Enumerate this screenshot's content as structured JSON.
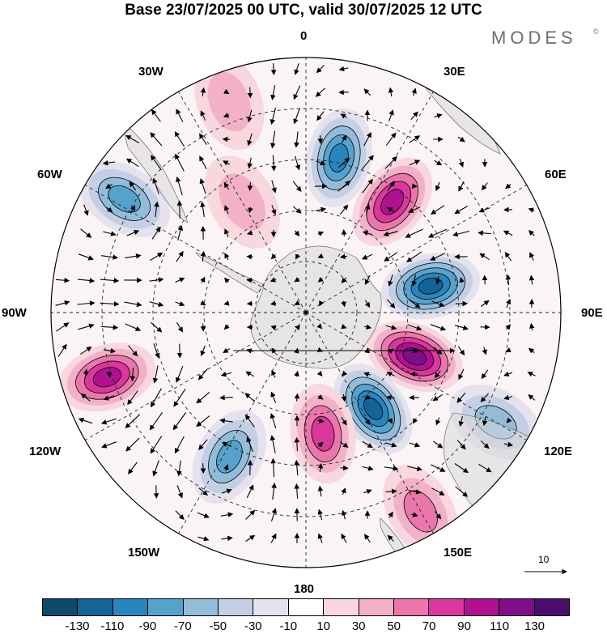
{
  "header": {
    "title": "Base 23/07/2025 00 UTC, valid 30/07/2025 12 UTC",
    "brand": "MODES",
    "brand_mark": "©"
  },
  "map": {
    "projection": "south polar stereographic",
    "longitude_labels": {
      "top": "0",
      "ne30": "30E",
      "ne60": "60E",
      "east": "90E",
      "se120": "120E",
      "se150": "150E",
      "bottom": "180",
      "sw150": "150W",
      "sw120": "120W",
      "west": "90W",
      "nw60": "60W",
      "nw30": "30W"
    },
    "reference_vector_label": "10",
    "anomaly_cells": [
      {
        "lon": 12,
        "r": 0.62,
        "value": -100,
        "name": "negative anomaly 0-30E"
      },
      {
        "lon": 38,
        "r": 0.55,
        "value": 115,
        "name": "positive anomaly 30-60E"
      },
      {
        "lon": 78,
        "r": 0.5,
        "value": -125,
        "name": "negative anomaly 60-90E"
      },
      {
        "lon": 112,
        "r": 0.46,
        "value": 125,
        "name": "positive anomaly 90-120E"
      },
      {
        "lon": 145,
        "r": 0.46,
        "value": -120,
        "name": "negative anomaly 150E"
      },
      {
        "lon": 172,
        "r": 0.48,
        "value": 95,
        "name": "positive anomaly 170E"
      },
      {
        "lon": -152,
        "r": 0.64,
        "value": -95,
        "name": "negative anomaly 150W"
      },
      {
        "lon": -108,
        "r": 0.82,
        "value": 100,
        "name": "positive anomaly 110W"
      },
      {
        "lon": -58,
        "r": 0.84,
        "value": -85,
        "name": "negative anomaly 60W"
      },
      {
        "lon": 120,
        "r": 0.86,
        "value": -65,
        "name": "negative anomaly 120E"
      },
      {
        "lon": -20,
        "r": 0.88,
        "value": 55,
        "name": "positive anomaly 20W"
      },
      {
        "lon": -30,
        "r": 0.5,
        "value": 40,
        "name": "positive anomaly 30W"
      },
      {
        "lon": 150,
        "r": 0.9,
        "value": 65,
        "name": "positive anomaly 150E"
      }
    ]
  },
  "colorbar": {
    "colors": [
      "#0f4a6b",
      "#146497",
      "#2a85be",
      "#57a2cc",
      "#93bcd9",
      "#c3cfe4",
      "#e5e2ee",
      "#ffffff",
      "#f8d7df",
      "#f3b1c8",
      "#ea76ac",
      "#d9379b",
      "#b0128f",
      "#7e0f89",
      "#4a0f6e"
    ],
    "ticks": [
      "-130",
      "-110",
      "-90",
      "-70",
      "-50",
      "-30",
      "-10",
      "10",
      "30",
      "50",
      "70",
      "90",
      "110",
      "130"
    ]
  }
}
